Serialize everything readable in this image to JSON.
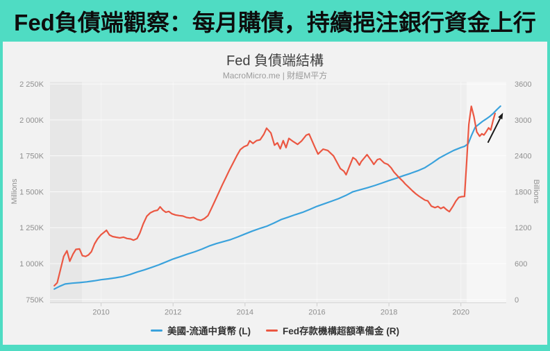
{
  "banner": {
    "title": "Fed負債端觀察：每月購債，持續挹注銀行資金上行"
  },
  "chart": {
    "title": "Fed 負債端結構",
    "subtitle": "MacroMicro.me | 財經M平方",
    "watermark": "MacroMicro"
  },
  "legend": [
    {
      "label": "美國-流通中貨幣 (L)",
      "color": "#3aa2dc"
    },
    {
      "label": "Fed存款機構超額準備金 (R)",
      "color": "#eb5742"
    }
  ],
  "colors": {
    "frame_teal": "#4fdcc3",
    "card_bg": "#f2f2f2",
    "plot_bg": "#eeeeee",
    "blue_line": "#3aa2dc",
    "red_line": "#eb5742"
  },
  "chart_data": {
    "type": "line",
    "title": "Fed 負債端結構",
    "subtitle": "MacroMicro.me | 財經M平方",
    "grid": true,
    "legend_position": "bottom",
    "x_axis": {
      "min": 2008.58,
      "max": 2021.26,
      "ticks": [
        "2010",
        "2012",
        "2014",
        "2016",
        "2018",
        "2020"
      ],
      "tick_values": [
        2010,
        2012,
        2014,
        2016,
        2018,
        2020
      ]
    },
    "y_left": {
      "label": "Millions",
      "min": 750,
      "max": 2250,
      "ticks": [
        "2 250K",
        "2 000K",
        "1 750K",
        "1 500K",
        "1 250K",
        "1 000K",
        "750K"
      ],
      "tick_values": [
        2250,
        2000,
        1750,
        1500,
        1250,
        1000,
        750
      ]
    },
    "y_right": {
      "label": "Billions",
      "min": 0,
      "max": 3600,
      "ticks": [
        "3600",
        "3000",
        "2400",
        "1800",
        "1200",
        "600",
        "0"
      ],
      "tick_values": [
        3600,
        3000,
        2400,
        1800,
        1200,
        600,
        0
      ]
    },
    "plot_bands": [
      {
        "from": 2008.58,
        "to": 2009.47,
        "color": "#e7e7e7"
      },
      {
        "from": 2020.16,
        "to": 2021.26,
        "color": "#f6f6f6"
      }
    ],
    "series": [
      {
        "name": "美國-流通中貨幣 (L)",
        "axis": "left",
        "color": "#3aa2dc",
        "unit": "Millions",
        "points": [
          [
            2008.7,
            823
          ],
          [
            2008.85,
            842
          ],
          [
            2009.0,
            858
          ],
          [
            2009.2,
            864
          ],
          [
            2009.4,
            868
          ],
          [
            2009.6,
            873
          ],
          [
            2009.8,
            880
          ],
          [
            2010.0,
            888
          ],
          [
            2010.2,
            894
          ],
          [
            2010.4,
            901
          ],
          [
            2010.6,
            910
          ],
          [
            2010.8,
            924
          ],
          [
            2011.0,
            941
          ],
          [
            2011.2,
            956
          ],
          [
            2011.4,
            973
          ],
          [
            2011.6,
            991
          ],
          [
            2011.8,
            1011
          ],
          [
            2012.0,
            1032
          ],
          [
            2012.2,
            1049
          ],
          [
            2012.4,
            1066
          ],
          [
            2012.6,
            1082
          ],
          [
            2012.8,
            1101
          ],
          [
            2013.0,
            1122
          ],
          [
            2013.2,
            1139
          ],
          [
            2013.4,
            1153
          ],
          [
            2013.6,
            1167
          ],
          [
            2013.8,
            1186
          ],
          [
            2014.0,
            1206
          ],
          [
            2014.2,
            1226
          ],
          [
            2014.4,
            1244
          ],
          [
            2014.6,
            1260
          ],
          [
            2014.8,
            1282
          ],
          [
            2015.0,
            1306
          ],
          [
            2015.2,
            1323
          ],
          [
            2015.4,
            1341
          ],
          [
            2015.6,
            1357
          ],
          [
            2015.8,
            1377
          ],
          [
            2016.0,
            1399
          ],
          [
            2016.2,
            1416
          ],
          [
            2016.4,
            1434
          ],
          [
            2016.6,
            1452
          ],
          [
            2016.8,
            1474
          ],
          [
            2017.0,
            1500
          ],
          [
            2017.2,
            1514
          ],
          [
            2017.4,
            1528
          ],
          [
            2017.6,
            1543
          ],
          [
            2017.8,
            1560
          ],
          [
            2018.0,
            1578
          ],
          [
            2018.2,
            1594
          ],
          [
            2018.4,
            1612
          ],
          [
            2018.6,
            1628
          ],
          [
            2018.8,
            1646
          ],
          [
            2019.0,
            1668
          ],
          [
            2019.2,
            1700
          ],
          [
            2019.4,
            1735
          ],
          [
            2019.6,
            1762
          ],
          [
            2019.8,
            1788
          ],
          [
            2020.0,
            1808
          ],
          [
            2020.1,
            1816
          ],
          [
            2020.2,
            1834
          ],
          [
            2020.3,
            1896
          ],
          [
            2020.4,
            1950
          ],
          [
            2020.5,
            1970
          ],
          [
            2020.6,
            1990
          ],
          [
            2020.7,
            2006
          ],
          [
            2020.8,
            2024
          ],
          [
            2020.9,
            2046
          ],
          [
            2021.0,
            2072
          ],
          [
            2021.1,
            2096
          ]
        ]
      },
      {
        "name": "Fed存款機構超額準備金 (R)",
        "axis": "right",
        "color": "#eb5742",
        "unit": "Billions",
        "points": [
          [
            2008.7,
            230
          ],
          [
            2008.78,
            280
          ],
          [
            2008.88,
            520
          ],
          [
            2008.96,
            720
          ],
          [
            2009.05,
            815
          ],
          [
            2009.13,
            640
          ],
          [
            2009.22,
            760
          ],
          [
            2009.3,
            838
          ],
          [
            2009.4,
            845
          ],
          [
            2009.48,
            732
          ],
          [
            2009.57,
            720
          ],
          [
            2009.65,
            745
          ],
          [
            2009.73,
            798
          ],
          [
            2009.82,
            930
          ],
          [
            2009.9,
            1012
          ],
          [
            2010.0,
            1085
          ],
          [
            2010.08,
            1122
          ],
          [
            2010.15,
            1158
          ],
          [
            2010.23,
            1080
          ],
          [
            2010.32,
            1052
          ],
          [
            2010.42,
            1040
          ],
          [
            2010.52,
            1030
          ],
          [
            2010.62,
            1042
          ],
          [
            2010.72,
            1020
          ],
          [
            2010.82,
            1012
          ],
          [
            2010.9,
            992
          ],
          [
            2011.0,
            1018
          ],
          [
            2011.08,
            1112
          ],
          [
            2011.17,
            1262
          ],
          [
            2011.27,
            1392
          ],
          [
            2011.37,
            1450
          ],
          [
            2011.47,
            1478
          ],
          [
            2011.57,
            1492
          ],
          [
            2011.64,
            1548
          ],
          [
            2011.72,
            1492
          ],
          [
            2011.8,
            1458
          ],
          [
            2011.88,
            1472
          ],
          [
            2011.97,
            1432
          ],
          [
            2012.07,
            1412
          ],
          [
            2012.17,
            1402
          ],
          [
            2012.27,
            1395
          ],
          [
            2012.37,
            1372
          ],
          [
            2012.47,
            1362
          ],
          [
            2012.57,
            1372
          ],
          [
            2012.67,
            1338
          ],
          [
            2012.77,
            1322
          ],
          [
            2012.87,
            1352
          ],
          [
            2012.97,
            1402
          ],
          [
            2013.07,
            1525
          ],
          [
            2013.17,
            1655
          ],
          [
            2013.27,
            1785
          ],
          [
            2013.37,
            1918
          ],
          [
            2013.47,
            2042
          ],
          [
            2013.57,
            2168
          ],
          [
            2013.67,
            2282
          ],
          [
            2013.77,
            2400
          ],
          [
            2013.87,
            2505
          ],
          [
            2013.97,
            2552
          ],
          [
            2014.07,
            2578
          ],
          [
            2014.13,
            2652
          ],
          [
            2014.22,
            2608
          ],
          [
            2014.32,
            2655
          ],
          [
            2014.42,
            2668
          ],
          [
            2014.52,
            2758
          ],
          [
            2014.6,
            2862
          ],
          [
            2014.72,
            2782
          ],
          [
            2014.82,
            2578
          ],
          [
            2014.9,
            2618
          ],
          [
            2014.98,
            2518
          ],
          [
            2015.06,
            2655
          ],
          [
            2015.14,
            2538
          ],
          [
            2015.22,
            2692
          ],
          [
            2015.34,
            2638
          ],
          [
            2015.46,
            2592
          ],
          [
            2015.57,
            2648
          ],
          [
            2015.7,
            2745
          ],
          [
            2015.78,
            2765
          ],
          [
            2015.94,
            2545
          ],
          [
            2016.03,
            2430
          ],
          [
            2016.17,
            2512
          ],
          [
            2016.3,
            2490
          ],
          [
            2016.46,
            2398
          ],
          [
            2016.65,
            2188
          ],
          [
            2016.75,
            2142
          ],
          [
            2016.81,
            2085
          ],
          [
            2017.0,
            2372
          ],
          [
            2017.08,
            2338
          ],
          [
            2017.18,
            2246
          ],
          [
            2017.23,
            2305
          ],
          [
            2017.39,
            2420
          ],
          [
            2017.53,
            2305
          ],
          [
            2017.58,
            2257
          ],
          [
            2017.68,
            2338
          ],
          [
            2017.75,
            2350
          ],
          [
            2017.87,
            2280
          ],
          [
            2017.97,
            2257
          ],
          [
            2018.06,
            2200
          ],
          [
            2018.14,
            2130
          ],
          [
            2018.26,
            2050
          ],
          [
            2018.38,
            1980
          ],
          [
            2018.45,
            1933
          ],
          [
            2018.56,
            1870
          ],
          [
            2018.65,
            1817
          ],
          [
            2018.75,
            1765
          ],
          [
            2018.84,
            1724
          ],
          [
            2018.94,
            1685
          ],
          [
            2019.0,
            1660
          ],
          [
            2019.08,
            1648
          ],
          [
            2019.18,
            1560
          ],
          [
            2019.28,
            1535
          ],
          [
            2019.36,
            1555
          ],
          [
            2019.44,
            1520
          ],
          [
            2019.52,
            1545
          ],
          [
            2019.6,
            1500
          ],
          [
            2019.68,
            1468
          ],
          [
            2019.78,
            1560
          ],
          [
            2019.86,
            1645
          ],
          [
            2019.94,
            1705
          ],
          [
            2020.02,
            1718
          ],
          [
            2020.1,
            1722
          ],
          [
            2020.16,
            2300
          ],
          [
            2020.22,
            2925
          ],
          [
            2020.29,
            3228
          ],
          [
            2020.36,
            3060
          ],
          [
            2020.44,
            2800
          ],
          [
            2020.52,
            2728
          ],
          [
            2020.58,
            2768
          ],
          [
            2020.64,
            2748
          ],
          [
            2020.7,
            2800
          ],
          [
            2020.77,
            2868
          ],
          [
            2020.83,
            2832
          ],
          [
            2020.89,
            2980
          ],
          [
            2020.95,
            3108
          ]
        ]
      }
    ],
    "annotations": [
      {
        "type": "arrow",
        "axis": "right",
        "from": [
          2020.75,
          2620
        ],
        "to": [
          2021.17,
          3120
        ],
        "color": "#1a1a1a"
      }
    ]
  }
}
